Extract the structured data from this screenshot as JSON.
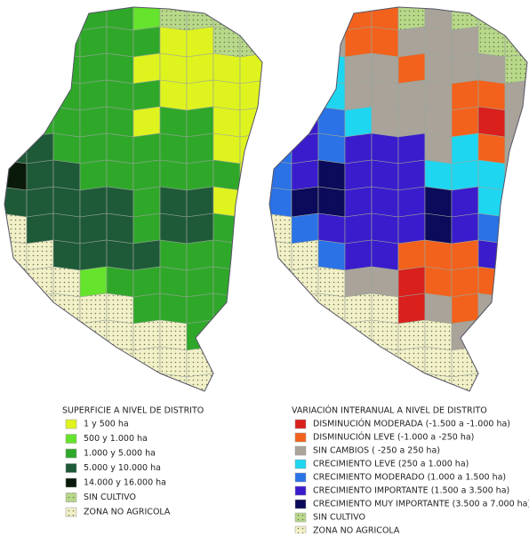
{
  "maps": [
    {
      "legend_title": "SUPERFICIE A NIVEL DE DISTRITO",
      "legend": [
        {
          "label": "1 y 500 ha",
          "color": "#dff31f"
        },
        {
          "label": "500 y 1.000 ha",
          "color": "#66e32c"
        },
        {
          "label": "1.000 y 5.000 ha",
          "color": "#2fa82a"
        },
        {
          "label": "5.000 y 10.000 ha",
          "color": "#1e5a38"
        },
        {
          "label": "14.000 y 16.000 ha",
          "color": "#0a1a0a"
        },
        {
          "label": "SIN CULTIVO",
          "color": "#b8d88a"
        },
        {
          "label": "ZONA NO AGRICOLA",
          "color": "#f2f0c8"
        }
      ]
    },
    {
      "legend_title": "VARIACIÓN INTERANUAL A NIVEL DE DISTRITO",
      "legend": [
        {
          "label": "DISMINUCIÓN MODERADA (-1.500 a -1.000 ha)",
          "color": "#d9201c"
        },
        {
          "label": "DISMINUCIÓN LEVE (-1.000 a -250 ha)",
          "color": "#f2621c"
        },
        {
          "label": "SIN CAMBIOS ( -250 a 250 ha)",
          "color": "#a9a39a"
        },
        {
          "label": "CRECIMIENTO LEVE (250 a 1.000 ha)",
          "color": "#1ed6f0"
        },
        {
          "label": "CRECIMIENTO MODERADO (1.000 a 1.500 ha)",
          "color": "#2a72e6"
        },
        {
          "label": "CRECIMIENTO IMPORTANTE (1.500 a 3.500 ha)",
          "color": "#3a1ccc"
        },
        {
          "label": "CRECIMIENTO MUY IMPORTANTE (3.500 a 7.000 ha)",
          "color": "#0c0a5a"
        },
        {
          "label": "SIN CULTIVO",
          "color": "#b8d88a"
        },
        {
          "label": "ZONA NO AGRICOLA",
          "color": "#f2f0c8"
        }
      ]
    }
  ]
}
